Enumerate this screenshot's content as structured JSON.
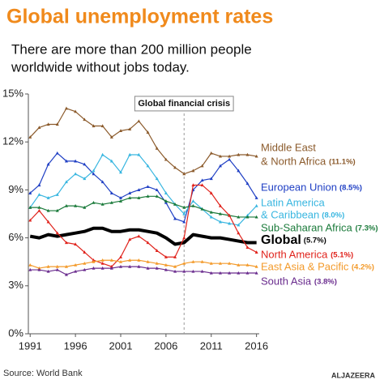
{
  "chart_data": {
    "type": "line",
    "title": "Global unemployment rates",
    "subtitle": [
      "There are more than 200 million people",
      "worldwide without jobs today."
    ],
    "source": "Source: World Bank",
    "logo": "ALJAZEERA",
    "annotation": {
      "text": "Global financial crisis",
      "x": 2008
    },
    "x": [
      1991,
      1992,
      1993,
      1994,
      1995,
      1996,
      1997,
      1998,
      1999,
      2000,
      2001,
      2002,
      2003,
      2004,
      2005,
      2006,
      2007,
      2008,
      2009,
      2010,
      2011,
      2012,
      2013,
      2014,
      2015,
      2016
    ],
    "xlim": [
      1990.8,
      2016.3
    ],
    "xticks": [
      1991,
      1996,
      2001,
      2006,
      2011,
      2016
    ],
    "ylim": [
      0,
      15
    ],
    "yticks": [
      {
        "value": 0,
        "label": "0%"
      },
      {
        "value": 3,
        "label": "3%"
      },
      {
        "value": 6,
        "label": "6%"
      },
      {
        "value": 9,
        "label": "9%"
      },
      {
        "value": 12,
        "label": "12%"
      },
      {
        "value": 15,
        "label": "15%"
      }
    ],
    "series": [
      {
        "name": [
          "Middle East",
          "& North Africa"
        ],
        "end_label": "(11.1%)",
        "color": "#8b5a2b",
        "values": [
          12.3,
          12.9,
          13.1,
          13.1,
          14.1,
          13.9,
          13.4,
          13.0,
          13.0,
          12.3,
          12.7,
          12.8,
          13.3,
          12.6,
          11.6,
          10.9,
          10.4,
          10.0,
          10.2,
          10.5,
          11.3,
          11.1,
          11.1,
          11.2,
          11.2,
          11.1
        ]
      },
      {
        "name": [
          "European Union"
        ],
        "end_label": "(8.5%)",
        "color": "#1f3fc4",
        "values": [
          8.8,
          9.3,
          10.6,
          11.3,
          10.8,
          10.8,
          10.6,
          10.0,
          9.5,
          8.8,
          8.5,
          8.8,
          9.0,
          9.2,
          9.0,
          8.2,
          7.2,
          7.0,
          9.0,
          9.6,
          9.7,
          10.5,
          10.9,
          10.2,
          9.4,
          8.5
        ]
      },
      {
        "name": [
          "Latin America",
          "& Caribbean"
        ],
        "end_label": "(8.0%)",
        "color": "#38b6e0",
        "values": [
          7.9,
          8.7,
          8.5,
          8.7,
          9.5,
          10.0,
          9.7,
          10.2,
          11.2,
          10.8,
          10.1,
          11.2,
          11.2,
          10.5,
          9.7,
          8.8,
          8.1,
          7.5,
          8.3,
          7.8,
          7.3,
          7.0,
          6.9,
          6.8,
          7.4,
          8.0
        ]
      },
      {
        "name": [
          "Sub-Saharan Africa"
        ],
        "end_label": "(7.3%)",
        "color": "#1a7a3a",
        "values": [
          7.9,
          7.9,
          7.7,
          7.7,
          8.0,
          8.0,
          7.9,
          8.2,
          8.1,
          8.2,
          8.3,
          8.5,
          8.5,
          8.6,
          8.6,
          8.3,
          8.1,
          7.9,
          8.0,
          7.8,
          7.6,
          7.5,
          7.4,
          7.3,
          7.3,
          7.3
        ]
      },
      {
        "name": [
          "Global"
        ],
        "end_label": "(5.7%)",
        "color": "#000000",
        "bold": true,
        "values": [
          6.1,
          6.0,
          6.2,
          6.1,
          6.2,
          6.3,
          6.4,
          6.6,
          6.6,
          6.4,
          6.4,
          6.5,
          6.5,
          6.4,
          6.3,
          6.0,
          5.6,
          5.7,
          6.2,
          6.1,
          6.0,
          6.0,
          5.9,
          5.8,
          5.7,
          5.7
        ]
      },
      {
        "name": [
          "North America"
        ],
        "end_label": "(5.1%)",
        "color": "#e0231c",
        "values": [
          7.1,
          7.7,
          7.0,
          6.3,
          5.7,
          5.6,
          5.1,
          4.6,
          4.4,
          4.2,
          4.8,
          5.9,
          6.1,
          5.7,
          5.2,
          4.8,
          4.8,
          6.0,
          9.3,
          9.3,
          8.8,
          8.0,
          7.4,
          6.3,
          5.4,
          5.1
        ]
      },
      {
        "name": [
          "East Asia & Pacific"
        ],
        "end_label": "(4.2%)",
        "color": "#f39a2a",
        "values": [
          4.3,
          4.1,
          4.2,
          4.2,
          4.2,
          4.3,
          4.4,
          4.5,
          4.6,
          4.6,
          4.5,
          4.6,
          4.6,
          4.5,
          4.4,
          4.3,
          4.2,
          4.4,
          4.5,
          4.5,
          4.4,
          4.4,
          4.4,
          4.3,
          4.3,
          4.2
        ]
      },
      {
        "name": [
          "South Asia"
        ],
        "end_label": "(3.8%)",
        "color": "#6a2c8e",
        "values": [
          4.0,
          4.0,
          3.9,
          4.0,
          3.7,
          3.9,
          4.0,
          4.1,
          4.1,
          4.1,
          4.2,
          4.2,
          4.2,
          4.1,
          4.1,
          4.0,
          3.9,
          3.9,
          3.9,
          3.9,
          3.8,
          3.8,
          3.8,
          3.8,
          3.8,
          3.8
        ]
      }
    ]
  }
}
